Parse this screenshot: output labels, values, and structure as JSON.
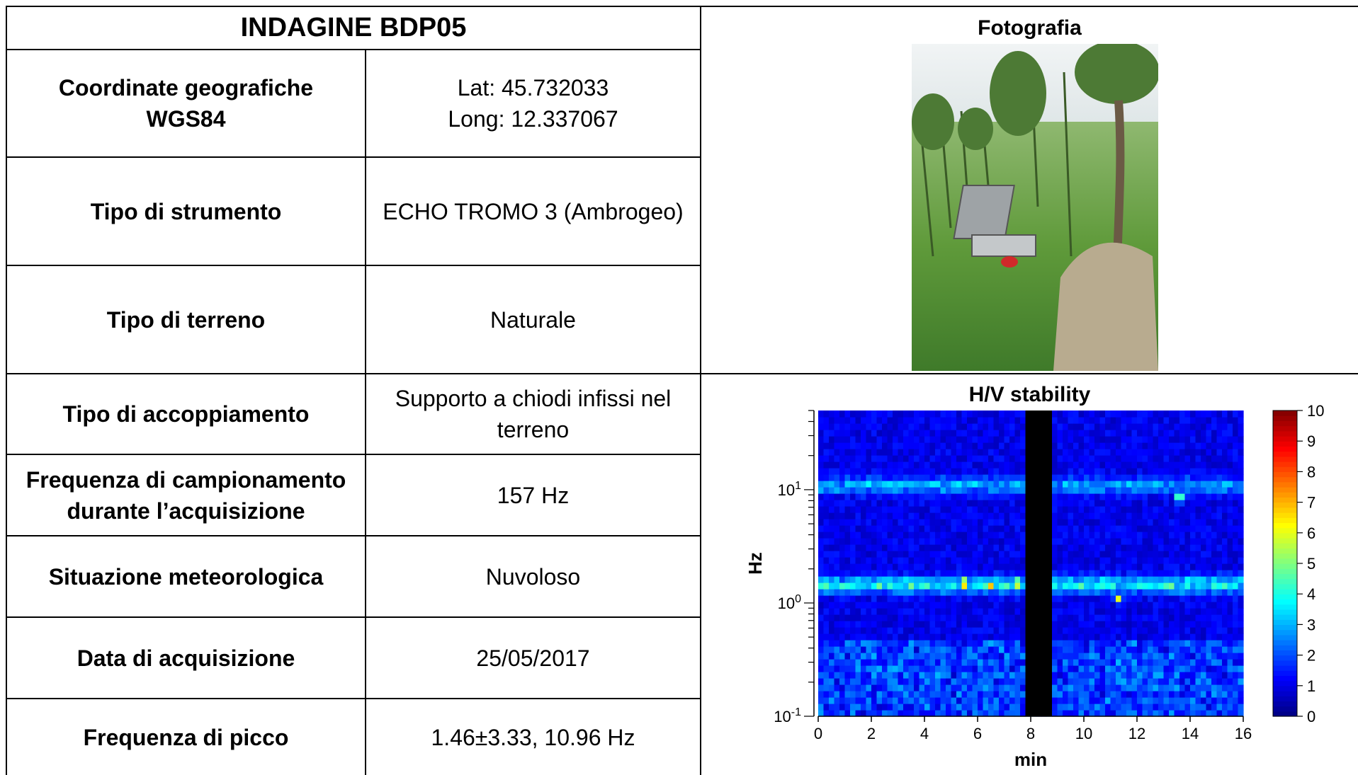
{
  "table": {
    "title": "INDAGINE BDP05",
    "rows": [
      {
        "label": [
          "Coordinate geografiche",
          "WGS84"
        ],
        "value": [
          "Lat: 45.732033",
          "Long: 12.337067"
        ]
      },
      {
        "label": [
          "Tipo di strumento"
        ],
        "value": [
          "ECHO TROMO 3 (Ambrogeo)"
        ]
      },
      {
        "label": [
          "Tipo di terreno"
        ],
        "value": [
          "Naturale"
        ]
      },
      {
        "label": [
          "Tipo di accoppiamento"
        ],
        "value": [
          "Supporto a chiodi infissi nel",
          "terreno"
        ]
      },
      {
        "label": [
          "Frequenza di campionamento",
          "durante l’acquisizione"
        ],
        "value": [
          "157 Hz"
        ]
      },
      {
        "label": [
          "Situazione meteorologica"
        ],
        "value": [
          "Nuvoloso"
        ]
      },
      {
        "label": [
          "Data di acquisizione"
        ],
        "value": [
          "25/05/2017"
        ]
      },
      {
        "label": [
          "Frequenza di picco"
        ],
        "value": [
          "1.46±3.33, 10.96 Hz"
        ]
      }
    ]
  },
  "photo": {
    "heading": "Fotografia",
    "colors": {
      "sky": "#e6ecee",
      "grass": "#5f9a3a",
      "dirt": "#b8ab8f",
      "case": "#9ea3a6"
    }
  },
  "hv": {
    "heading": "H/V stability"
  },
  "chart_data": {
    "type": "heatmap",
    "title": "H/V stability",
    "xlabel": "min",
    "ylabel": "Hz",
    "xlim": [
      0,
      16
    ],
    "ylim": [
      0.1,
      50
    ],
    "y_scale": "log",
    "x_ticks": [
      "0",
      "2",
      "4",
      "6",
      "8",
      "10",
      "12",
      "14",
      "16"
    ],
    "y_ticks": [
      {
        "base": "10",
        "exp": "-1",
        "value": 0.1
      },
      {
        "base": "10",
        "exp": "0",
        "value": 1
      },
      {
        "base": "10",
        "exp": "1",
        "value": 10
      }
    ],
    "colorbar": {
      "min": 0,
      "max": 10,
      "ticks": [
        "0",
        "1",
        "2",
        "3",
        "4",
        "5",
        "6",
        "7",
        "8",
        "9",
        "10"
      ]
    },
    "gap": {
      "x_start": 7.8,
      "x_end": 8.8
    },
    "ridges": [
      {
        "freq_hz": 1.46,
        "level": 4
      },
      {
        "freq_hz": 10.96,
        "level": 3
      }
    ],
    "peaks": [
      {
        "t": 5.5,
        "freq_hz": 1.5,
        "level": 8
      },
      {
        "t": 6.5,
        "freq_hz": 1.45,
        "level": 7
      },
      {
        "t": 7.5,
        "freq_hz": 1.5,
        "level": 7
      },
      {
        "t": 4.0,
        "freq_hz": 1.5,
        "level": 5
      },
      {
        "t": 11.3,
        "freq_hz": 1.1,
        "level": 6
      },
      {
        "t": 13.6,
        "freq_hz": 8.5,
        "level": 6
      },
      {
        "t": 12.8,
        "freq_hz": 0.23,
        "level": 4
      }
    ]
  }
}
